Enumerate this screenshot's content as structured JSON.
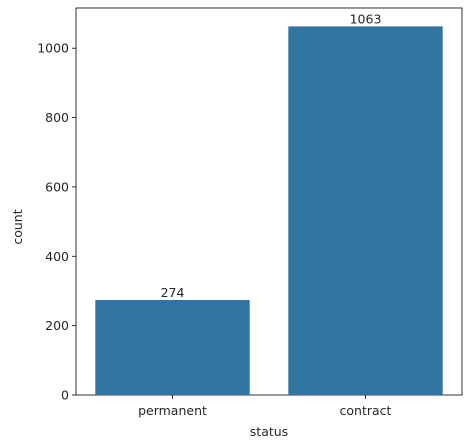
{
  "chart_data": {
    "type": "bar",
    "categories": [
      "permanent",
      "contract"
    ],
    "values": [
      274,
      1063
    ],
    "data_labels": [
      "274",
      "1063"
    ],
    "xlabel": "status",
    "ylabel": "count",
    "ylim": [
      0,
      1116
    ],
    "yticks": [
      0,
      200,
      400,
      600,
      800,
      1000
    ],
    "grid": false,
    "bar_color": "#3274a1"
  }
}
